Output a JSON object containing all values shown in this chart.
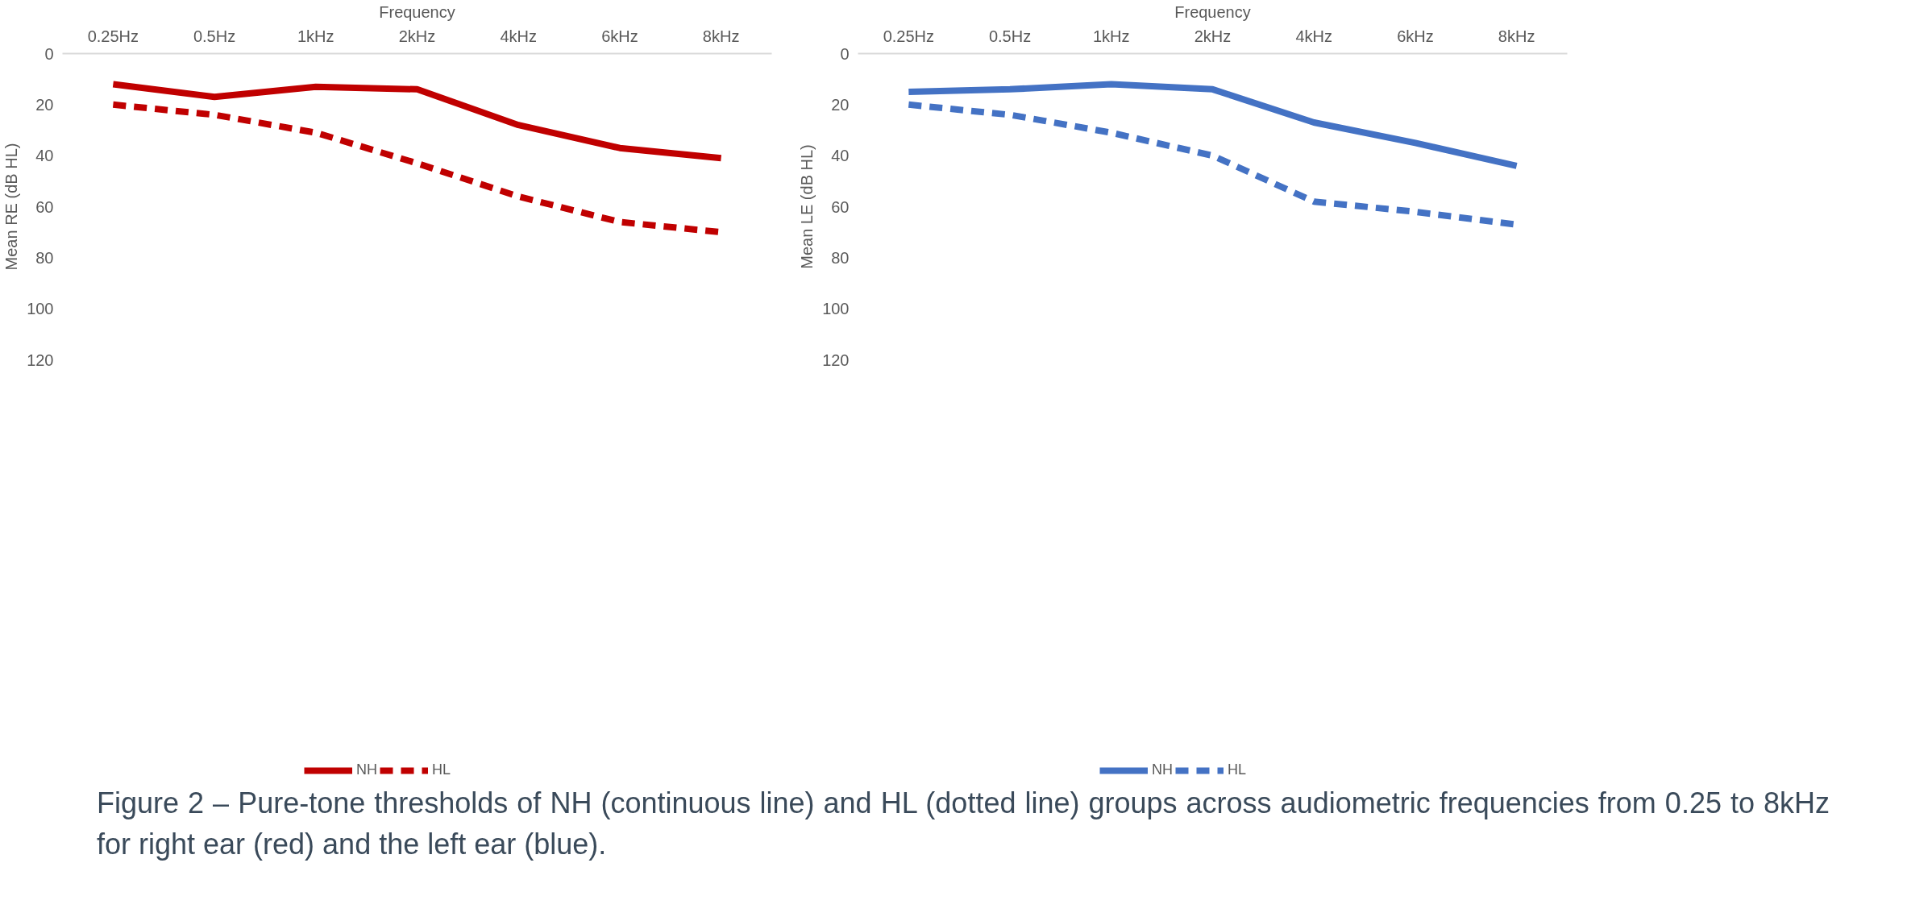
{
  "chart_data": [
    {
      "type": "line",
      "xlabel": "Frequency",
      "ylabel": "Mean RE (dB HL)",
      "categories": [
        "0.25Hz",
        "0.5Hz",
        "1kHz",
        "2kHz",
        "4kHz",
        "6kHz",
        "8kHz"
      ],
      "ylim": [
        120,
        0
      ],
      "yticks": [
        0,
        20,
        40,
        60,
        80,
        100,
        120
      ],
      "legend": "bottom",
      "series": [
        {
          "name": "NH",
          "color": "#c00000",
          "line_style": "solid",
          "values": [
            12,
            17,
            13,
            14,
            28,
            37,
            41
          ]
        },
        {
          "name": "HL",
          "color": "#c00000",
          "line_style": "dashed",
          "values": [
            20,
            24,
            31,
            43,
            56,
            66,
            70
          ]
        }
      ]
    },
    {
      "type": "line",
      "xlabel": "Frequency",
      "ylabel": "Mean LE (dB HL)",
      "categories": [
        "0.25Hz",
        "0.5Hz",
        "1kHz",
        "2kHz",
        "4kHz",
        "6kHz",
        "8kHz"
      ],
      "ylim": [
        120,
        0
      ],
      "yticks": [
        0,
        20,
        40,
        60,
        80,
        100,
        120
      ],
      "legend": "bottom",
      "series": [
        {
          "name": "NH",
          "color": "#4472c4",
          "line_style": "solid",
          "values": [
            15,
            14,
            12,
            14,
            27,
            35,
            44
          ]
        },
        {
          "name": "HL",
          "color": "#4472c4",
          "line_style": "dashed",
          "values": [
            20,
            24,
            31,
            40,
            58,
            62,
            67
          ]
        }
      ],
      "annotations": [
        "Figure 2 – Pure-tone thresholds of NH (continuous line) and HL (dotted line) groups across audiometric frequencies from 0.25 to 8kHz for right ear (red) and the left ear (blue)."
      ]
    }
  ]
}
